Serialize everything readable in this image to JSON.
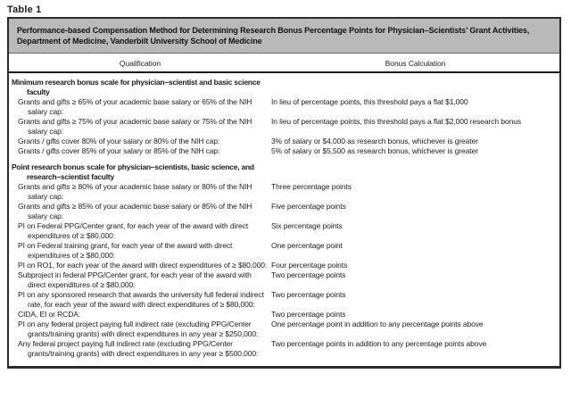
{
  "table_label": "Table 1",
  "colors": {
    "title_band_background": "#b9b9b9",
    "border": "#2b2b2b",
    "text": "#1c1c1c"
  },
  "table": {
    "title_lines": [
      "Performance-based Compensation Method for Determining Research Bonus Percentage Points for Physician–Scientists’ Grant Activities,",
      "Department of Medicine, Vanderbilt University School of Medicine"
    ],
    "columns": [
      "Qualification",
      "Bonus Calculation"
    ],
    "sections": [
      {
        "heading": "Minimum research bonus scale for physician–scientist and basic science faculty",
        "rows": [
          {
            "qualification": "Grants and gifts ≥ 65% of your academic base salary or 65% of the NIH salary cap:",
            "bonus": "In lieu of percentage points, this threshold pays a flat $1,000"
          },
          {
            "qualification": "Grants and gifts ≥ 75% of your academic base salary or 75% of the NIH salary cap:",
            "bonus": "In lieu of percentage points, this threshold pays a flat $2,000 research bonus"
          },
          {
            "qualification": "Grants / gifts cover 80% of your salary or 80% of the NIH cap:",
            "bonus": "3% of salary or $4,000 as research bonus, whichever is greater"
          },
          {
            "qualification": "Grants / gifts cover 85% of your salary or 85% of the NIH cap:",
            "bonus": "5% of salary or $5,500 as research bonus, whichever is greater"
          }
        ]
      },
      {
        "heading": "Point research bonus scale for physician–scientists, basic science, and research–scientist faculty",
        "rows": [
          {
            "qualification": "Grants and gifts ≥ 80% of your academic base salary or 80% of the NIH salary cap:",
            "bonus": "Three percentage points"
          },
          {
            "qualification": "Grants and gifts ≥ 85% of your academic base salary or 85% of the NIH salary cap:",
            "bonus": "Five percentage points"
          },
          {
            "qualification": "PI on Federal PPG/Center grant, for each year of the award with direct expenditures of ≥ $80,000:",
            "bonus": "Six percentage points"
          },
          {
            "qualification": "PI on Federal training grant, for each year of the award with direct expenditures of ≥ $80,000:",
            "bonus": "One percentage point"
          },
          {
            "qualification": "PI on RO1, for each year of the award with direct expenditures of ≥ $80,000:",
            "bonus": "Four percentage points"
          },
          {
            "qualification": "Subproject in federal PPG/Center grant, for each year of the award with direct expenditures of ≥ $80,000:",
            "bonus": "Two percentage points"
          },
          {
            "qualification": "PI on any sponsored research that awards the university full federal indirect rate, for each year of the award with direct expenditures of ≥ $80,000:",
            "bonus": "Two percentage points"
          },
          {
            "qualification": "CIDA, EI or RCDA:",
            "bonus": "Two percentage points"
          },
          {
            "qualification": "PI on any federal project paying full indirect rate (excluding PPG/Center grants/training grants) with direct expenditures in any year ≥ $250,000:",
            "bonus": "One percentage point in addition to any percentage points above"
          },
          {
            "qualification": "Any federal project paying full indirect rate (excluding PPG/Center grants/training grants) with direct expenditures in any year ≥ $500,000:",
            "bonus": "Two percentage points in addition to any percentage points above"
          }
        ]
      }
    ]
  }
}
